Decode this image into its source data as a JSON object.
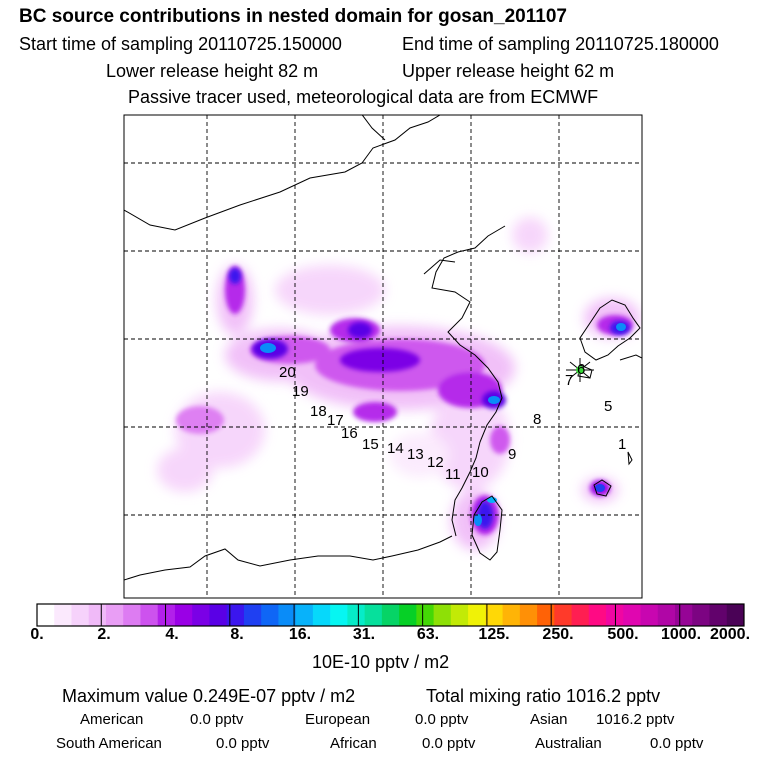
{
  "header": {
    "title": "BC  source contributions in nested domain for gosan_201107",
    "start_label": "Start time of sampling 20110725.150000",
    "end_label": "End time of sampling 20110725.180000",
    "lower_label": "Lower release height   82 m",
    "upper_label": "Upper release height   62 m",
    "model_note": "Passive tracer used, meteorological data are from ECMWF"
  },
  "chart_data": {
    "type": "heatmap",
    "title": "BC  source contributions in nested domain for gosan_201107",
    "colorbar": {
      "ticks": [
        "0.",
        "2.",
        "4.",
        "8.",
        "16.",
        "31.",
        "63.",
        "125.",
        "250.",
        "500.",
        "1000.",
        "2000."
      ],
      "unit_label": "10E-10 pptv / m2",
      "colors": [
        "#ffffff",
        "#fbe9fd",
        "#f6d2fb",
        "#f0baf8",
        "#e99ef5",
        "#dd7cf2",
        "#cd52ee",
        "#b220ea",
        "#9a00e6",
        "#7b00e6",
        "#5a00e6",
        "#3b16ee",
        "#1f40f2",
        "#0f66f6",
        "#0a8cf8",
        "#08b2fa",
        "#06d8fb",
        "#06f6f2",
        "#06ecc8",
        "#06e09c",
        "#06d466",
        "#06d026",
        "#44d806",
        "#8ee006",
        "#c2ea06",
        "#f0f206",
        "#ffd806",
        "#ffb406",
        "#ff9006",
        "#ff6206",
        "#ff3a2a",
        "#ff1e52",
        "#ff0a84",
        "#f006a2",
        "#e006b0",
        "#c806b0",
        "#b006a6",
        "#960496",
        "#7c0482",
        "#62026c",
        "#4a0256"
      ]
    },
    "trajectory_points": [
      "1",
      "5",
      "7",
      "6",
      "8",
      "9",
      "10",
      "11",
      "12",
      "13",
      "14",
      "15",
      "16",
      "17",
      "18",
      "19",
      "20"
    ],
    "hotspots_description_levels": [
      2,
      4,
      8,
      16
    ]
  },
  "footer": {
    "max_label": "Maximum value  0.249E-07 pptv / m2",
    "total_label": "Total mixing ratio     1016.2 pptv",
    "american_label": "American",
    "american_value": "0.0 pptv",
    "european_label": "European",
    "european_value": "0.0 pptv",
    "asian_label": "Asian",
    "asian_value": "1016.2 pptv",
    "south_american_label": "South American",
    "south_american_value": "0.0 pptv",
    "african_label": "African",
    "african_value": "0.0 pptv",
    "australian_label": "Australian",
    "australian_value": "0.0 pptv"
  }
}
